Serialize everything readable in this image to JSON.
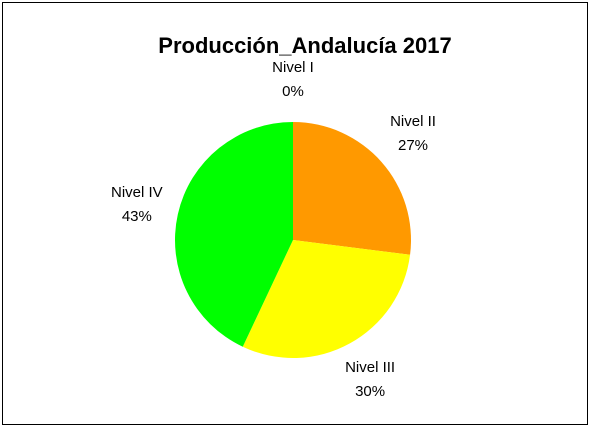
{
  "chart_data": {
    "type": "pie",
    "title": "Producción_Andalucía 2017",
    "categories": [
      "Nivel I",
      "Nivel II",
      "Nivel III",
      "Nivel IV"
    ],
    "values": [
      0,
      27,
      30,
      43
    ],
    "value_labels": [
      "0%",
      "27%",
      "30%",
      "43%"
    ],
    "colors": [
      "#3366ff",
      "#ff9900",
      "#ffff00",
      "#00ff00"
    ]
  }
}
